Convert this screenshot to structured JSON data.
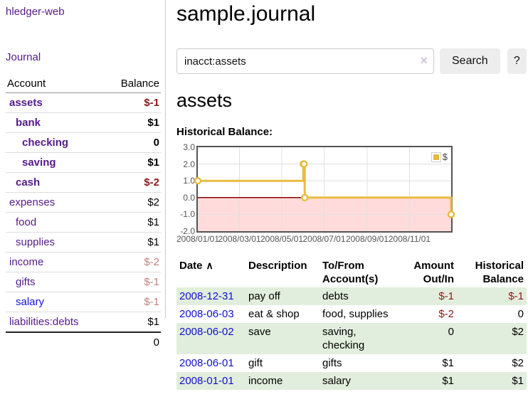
{
  "app": {
    "brand": "hledger-web"
  },
  "sidebar": {
    "journal_link": "Journal",
    "accounts": {
      "headers": {
        "account": "Account",
        "balance": "Balance"
      },
      "rows": [
        {
          "name": "assets",
          "balance": "$-1"
        },
        {
          "name": "bank",
          "balance": "$1"
        },
        {
          "name": "checking",
          "balance": "0"
        },
        {
          "name": "saving",
          "balance": "$1"
        },
        {
          "name": "cash",
          "balance": "$-2"
        },
        {
          "name": "expenses",
          "balance": "$2"
        },
        {
          "name": "food",
          "balance": "$1"
        },
        {
          "name": "supplies",
          "balance": "$1"
        },
        {
          "name": "income",
          "balance": "$-2"
        },
        {
          "name": "gifts",
          "balance": "$-1"
        },
        {
          "name": "salary",
          "balance": "$-1"
        },
        {
          "name": "liabilities:debts",
          "balance": "$1"
        }
      ],
      "total": "0"
    }
  },
  "main": {
    "title": "sample.journal",
    "search": {
      "value": "inacct:assets",
      "clear_icon": "×",
      "search_button": "Search",
      "help_button": "?"
    },
    "account_heading": "assets",
    "chart_heading": "Historical Balance:",
    "register": {
      "headers": {
        "date": "Date",
        "sort_asc_icon": "∧",
        "description": "Description",
        "accounts": "To/From Account(s)",
        "amount": "Amount Out/In",
        "balance": "Historical Balance"
      },
      "rows": [
        {
          "date": "2008-12-31",
          "description": "pay off",
          "accounts": "debts",
          "amount": "$-1",
          "balance": "$-1"
        },
        {
          "date": "2008-06-03",
          "description": "eat & shop",
          "accounts": "food, supplies",
          "amount": "$-2",
          "balance": "0"
        },
        {
          "date": "2008-06-02",
          "description": "save",
          "accounts": "saving,\nchecking",
          "amount": "0",
          "balance": "$2"
        },
        {
          "date": "2008-06-01",
          "description": "gift",
          "accounts": "gifts",
          "amount": "$1",
          "balance": "$2"
        },
        {
          "date": "2008-01-01",
          "description": "income",
          "accounts": "salary",
          "amount": "$1",
          "balance": "$1"
        }
      ]
    }
  },
  "chart_data": {
    "type": "line",
    "step": true,
    "title": "Historical Balance",
    "series": [
      {
        "name": "$",
        "color": "#e8bc40",
        "points": [
          [
            "2008-01-01",
            1
          ],
          [
            "2008-06-01",
            2
          ],
          [
            "2008-06-02",
            2
          ],
          [
            "2008-06-03",
            0
          ],
          [
            "2008-12-31",
            -1
          ]
        ]
      }
    ],
    "x_range": [
      "2008-01-01",
      "2008-12-31"
    ],
    "ylim": [
      -2,
      3
    ],
    "xticks": [
      {
        "date": "2008-01-01",
        "label": "2008/01/01"
      },
      {
        "date": "2008-03-01",
        "label": "2008/03/01"
      },
      {
        "date": "2008-05-01",
        "label": "2008/05/01"
      },
      {
        "date": "2008-07-01",
        "label": "2008/07/01"
      },
      {
        "date": "2008-09-01",
        "label": "2008/09/01"
      },
      {
        "date": "2008-11-01",
        "label": "2008/11/01"
      }
    ],
    "yticks": [
      {
        "v": 3,
        "label": "3.0"
      },
      {
        "v": 2,
        "label": "2.0"
      },
      {
        "v": 1,
        "label": "1.0"
      },
      {
        "v": 0,
        "label": "0.0"
      },
      {
        "v": -1,
        "label": "-1.0"
      },
      {
        "v": -2,
        "label": "-2.0"
      }
    ],
    "legend": {
      "label": "$",
      "position": "top-right"
    },
    "grid": true,
    "negative_region_color": "#ffdbdb",
    "zero_line_color": "#8b0000",
    "grid_color": "#e0e0e0"
  }
}
